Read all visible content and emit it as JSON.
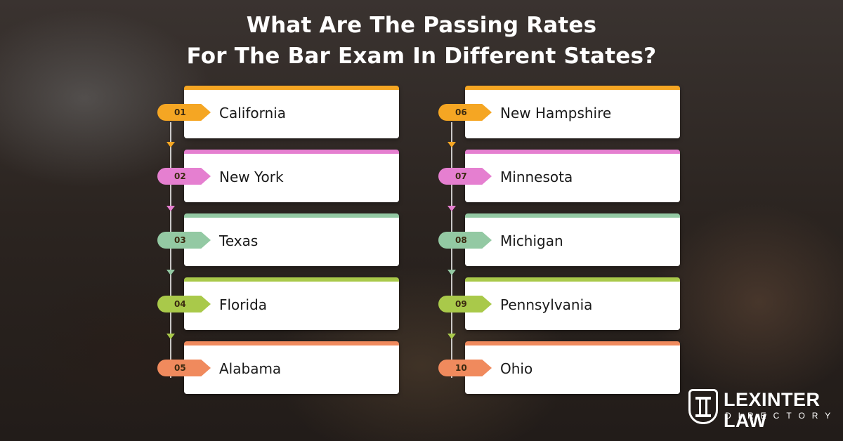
{
  "title": {
    "line1": "What Are The Passing Rates",
    "line2": "For The Bar Exam In Different States?"
  },
  "left_column": [
    {
      "number": "01",
      "label": "California",
      "color": "#f5a623"
    },
    {
      "number": "02",
      "label": "New York",
      "color": "#e57fd0"
    },
    {
      "number": "03",
      "label": "Texas",
      "color": "#93c9a3"
    },
    {
      "number": "04",
      "label": "Florida",
      "color": "#a9c94a"
    },
    {
      "number": "05",
      "label": "Alabama",
      "color": "#f08a5d"
    }
  ],
  "right_column": [
    {
      "number": "06",
      "label": "New Hampshire",
      "color": "#f5a623"
    },
    {
      "number": "07",
      "label": "Minnesota",
      "color": "#e57fd0"
    },
    {
      "number": "08",
      "label": "Michigan",
      "color": "#93c9a3"
    },
    {
      "number": "09",
      "label": "Pennsylvania",
      "color": "#a9c94a"
    },
    {
      "number": "10",
      "label": "Ohio",
      "color": "#f08a5d"
    }
  ],
  "logo": {
    "name": "LEXINTER LAW",
    "sub": "DIRECTORY",
    "icon": "pillar-shield-icon"
  }
}
